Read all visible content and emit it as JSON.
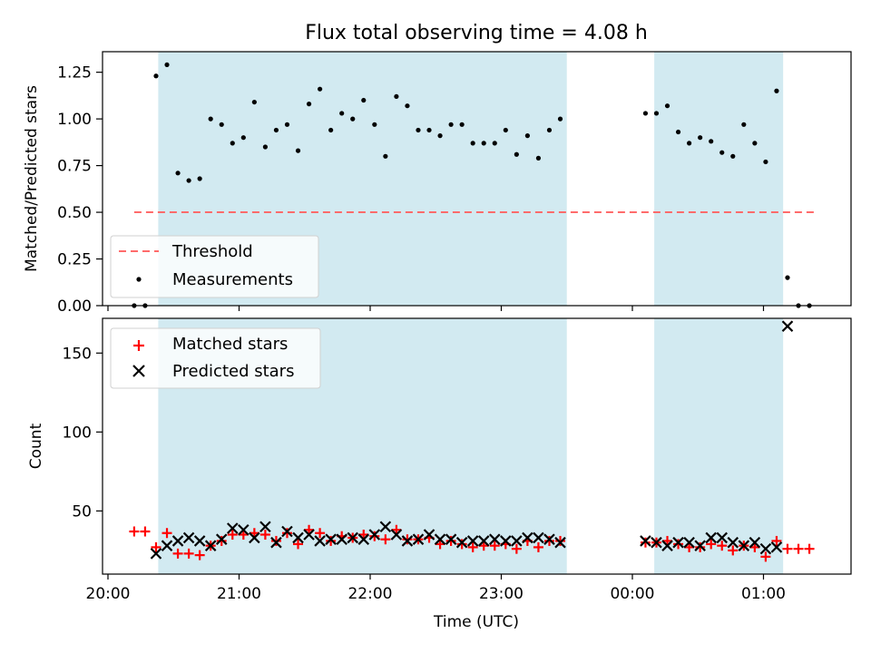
{
  "chart_data": [
    {
      "type": "scatter",
      "title": "Flux total observing time = 4.08 h",
      "xlabel": "",
      "ylabel": "Matched/Predicted stars",
      "ylim": [
        0,
        1.36
      ],
      "yticks": [
        "0.00",
        "0.25",
        "0.50",
        "0.75",
        "1.00",
        "1.25"
      ],
      "grid": false,
      "legend_placement": "lower-left",
      "threshold": {
        "name": "Threshold",
        "value": 0.5,
        "x_range": [
          "20:12",
          "01:23"
        ],
        "color": "#ff6b6b"
      },
      "series": [
        {
          "name": "Measurements",
          "color": "#000000",
          "points": [
            [
              "20:12",
              0.0
            ],
            [
              "20:17",
              0.0
            ],
            [
              "20:22",
              1.23
            ],
            [
              "20:27",
              1.29
            ],
            [
              "20:32",
              0.71
            ],
            [
              "20:37",
              0.67
            ],
            [
              "20:42",
              0.68
            ],
            [
              "20:47",
              1.0
            ],
            [
              "20:52",
              0.97
            ],
            [
              "20:57",
              0.87
            ],
            [
              "21:02",
              0.9
            ],
            [
              "21:07",
              1.09
            ],
            [
              "21:12",
              0.85
            ],
            [
              "21:17",
              0.94
            ],
            [
              "21:22",
              0.97
            ],
            [
              "21:27",
              0.83
            ],
            [
              "21:32",
              1.08
            ],
            [
              "21:37",
              1.16
            ],
            [
              "21:42",
              0.94
            ],
            [
              "21:47",
              1.03
            ],
            [
              "21:52",
              1.0
            ],
            [
              "21:57",
              1.1
            ],
            [
              "22:02",
              0.97
            ],
            [
              "22:07",
              0.8
            ],
            [
              "22:12",
              1.12
            ],
            [
              "22:17",
              1.07
            ],
            [
              "22:22",
              0.94
            ],
            [
              "22:27",
              0.94
            ],
            [
              "22:32",
              0.91
            ],
            [
              "22:37",
              0.97
            ],
            [
              "22:42",
              0.97
            ],
            [
              "22:47",
              0.87
            ],
            [
              "22:52",
              0.87
            ],
            [
              "22:57",
              0.87
            ],
            [
              "23:02",
              0.94
            ],
            [
              "23:07",
              0.81
            ],
            [
              "23:12",
              0.91
            ],
            [
              "23:17",
              0.79
            ],
            [
              "23:22",
              0.94
            ],
            [
              "23:27",
              1.0
            ],
            [
              "00:06",
              1.03
            ],
            [
              "00:11",
              1.03
            ],
            [
              "00:16",
              1.07
            ],
            [
              "00:21",
              0.93
            ],
            [
              "00:26",
              0.87
            ],
            [
              "00:31",
              0.9
            ],
            [
              "00:36",
              0.88
            ],
            [
              "00:41",
              0.82
            ],
            [
              "00:46",
              0.8
            ],
            [
              "00:51",
              0.97
            ],
            [
              "00:56",
              0.87
            ],
            [
              "01:01",
              0.77
            ],
            [
              "01:06",
              1.15
            ],
            [
              "01:11",
              0.15
            ],
            [
              "01:16",
              0.0
            ],
            [
              "01:21",
              0.0
            ]
          ]
        }
      ]
    },
    {
      "type": "scatter",
      "title": "",
      "xlabel": "Time (UTC)",
      "ylabel": "Count",
      "ylim": [
        10,
        172
      ],
      "yticks": [
        "50",
        "100",
        "150"
      ],
      "xticks": [
        "20:00",
        "21:00",
        "22:00",
        "23:00",
        "00:00",
        "01:00"
      ],
      "grid": false,
      "legend_placement": "upper-left",
      "series": [
        {
          "name": "Matched stars",
          "marker": "plus",
          "color": "#ff0000",
          "points": [
            [
              "20:12",
              37
            ],
            [
              "20:17",
              37
            ],
            [
              "20:22",
              27
            ],
            [
              "20:27",
              36
            ],
            [
              "20:32",
              23
            ],
            [
              "20:37",
              23
            ],
            [
              "20:42",
              22
            ],
            [
              "20:47",
              28
            ],
            [
              "20:52",
              31
            ],
            [
              "20:57",
              35
            ],
            [
              "21:02",
              35
            ],
            [
              "21:07",
              36
            ],
            [
              "21:12",
              35
            ],
            [
              "21:17",
              31
            ],
            [
              "21:22",
              36
            ],
            [
              "21:27",
              29
            ],
            [
              "21:32",
              38
            ],
            [
              "21:37",
              36
            ],
            [
              "21:42",
              31
            ],
            [
              "21:47",
              34
            ],
            [
              "21:52",
              33
            ],
            [
              "21:57",
              35
            ],
            [
              "22:02",
              34
            ],
            [
              "22:07",
              32
            ],
            [
              "22:12",
              38
            ],
            [
              "22:17",
              32
            ],
            [
              "22:22",
              32
            ],
            [
              "22:27",
              33
            ],
            [
              "22:32",
              29
            ],
            [
              "22:37",
              31
            ],
            [
              "22:42",
              29
            ],
            [
              "22:47",
              27
            ],
            [
              "22:52",
              28
            ],
            [
              "22:57",
              28
            ],
            [
              "23:02",
              29
            ],
            [
              "23:07",
              26
            ],
            [
              "23:12",
              31
            ],
            [
              "23:17",
              27
            ],
            [
              "23:22",
              31
            ],
            [
              "23:27",
              31
            ],
            [
              "00:06",
              30
            ],
            [
              "00:11",
              30
            ],
            [
              "00:16",
              31
            ],
            [
              "00:21",
              29
            ],
            [
              "00:26",
              27
            ],
            [
              "00:31",
              27
            ],
            [
              "00:36",
              29
            ],
            [
              "00:41",
              28
            ],
            [
              "00:46",
              25
            ],
            [
              "00:51",
              28
            ],
            [
              "00:56",
              27
            ],
            [
              "01:01",
              21
            ],
            [
              "01:06",
              31
            ],
            [
              "01:11",
              26
            ],
            [
              "01:16",
              26
            ],
            [
              "01:21",
              26
            ]
          ]
        },
        {
          "name": "Predicted stars",
          "marker": "x",
          "color": "#000000",
          "points": [
            [
              "20:22",
              23
            ],
            [
              "20:27",
              28
            ],
            [
              "20:32",
              31
            ],
            [
              "20:37",
              33
            ],
            [
              "20:42",
              31
            ],
            [
              "20:47",
              28
            ],
            [
              "20:52",
              32
            ],
            [
              "20:57",
              39
            ],
            [
              "21:02",
              38
            ],
            [
              "21:07",
              33
            ],
            [
              "21:12",
              40
            ],
            [
              "21:17",
              30
            ],
            [
              "21:22",
              37
            ],
            [
              "21:27",
              33
            ],
            [
              "21:32",
              35
            ],
            [
              "21:37",
              31
            ],
            [
              "21:42",
              32
            ],
            [
              "21:47",
              32
            ],
            [
              "21:52",
              33
            ],
            [
              "21:57",
              32
            ],
            [
              "22:02",
              35
            ],
            [
              "22:07",
              40
            ],
            [
              "22:12",
              35
            ],
            [
              "22:17",
              31
            ],
            [
              "22:22",
              32
            ],
            [
              "22:27",
              35
            ],
            [
              "22:32",
              32
            ],
            [
              "22:37",
              32
            ],
            [
              "22:42",
              30
            ],
            [
              "22:47",
              31
            ],
            [
              "22:52",
              31
            ],
            [
              "22:57",
              32
            ],
            [
              "23:02",
              31
            ],
            [
              "23:07",
              31
            ],
            [
              "23:12",
              33
            ],
            [
              "23:17",
              33
            ],
            [
              "23:22",
              32
            ],
            [
              "23:27",
              30
            ],
            [
              "00:06",
              31
            ],
            [
              "00:11",
              30
            ],
            [
              "00:16",
              28
            ],
            [
              "00:21",
              30
            ],
            [
              "00:26",
              30
            ],
            [
              "00:31",
              28
            ],
            [
              "00:36",
              33
            ],
            [
              "00:41",
              33
            ],
            [
              "00:46",
              30
            ],
            [
              "00:51",
              28
            ],
            [
              "00:56",
              30
            ],
            [
              "01:01",
              26
            ],
            [
              "01:06",
              27
            ],
            [
              "01:11",
              167
            ]
          ]
        }
      ]
    }
  ],
  "observing_windows": [
    {
      "start": "20:23",
      "end": "23:30"
    },
    {
      "start": "00:10",
      "end": "01:09"
    }
  ],
  "colors": {
    "window_fill": "#add8e6",
    "threshold": "#ff6b6b",
    "matched": "#ff0000",
    "predicted": "#000000"
  }
}
